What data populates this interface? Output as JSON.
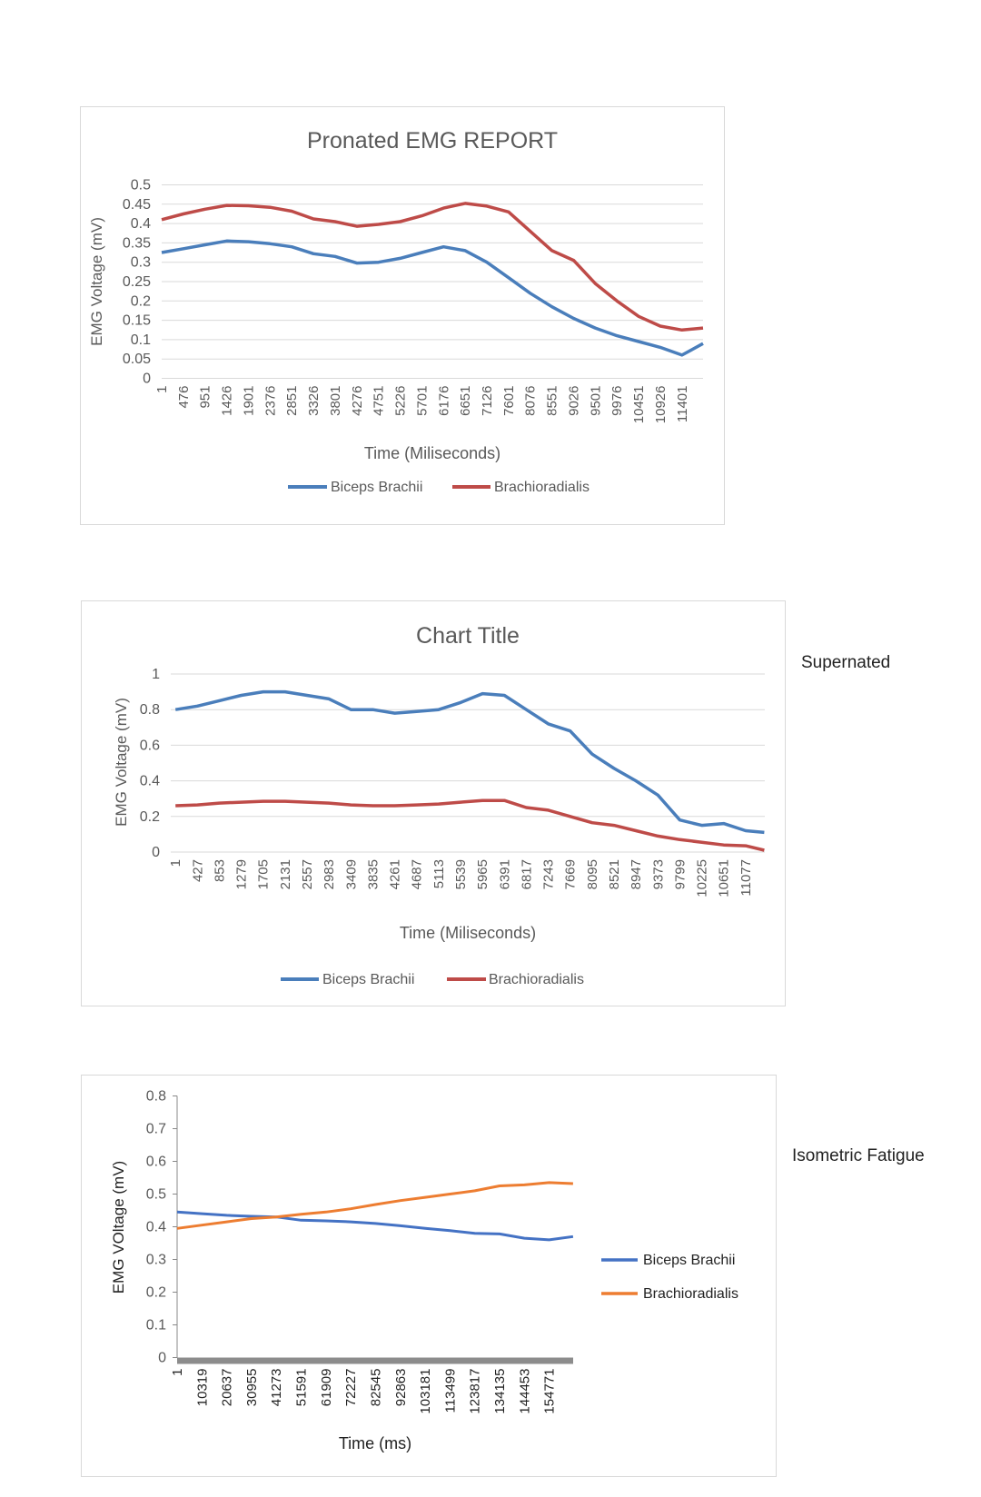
{
  "side_labels": {
    "chart2": "Supernated",
    "chart3": "Isometric Fatigue"
  },
  "chart_data": [
    {
      "type": "line",
      "title": "Pronated EMG  REPORT",
      "xlabel": "Time (Miliseconds)",
      "ylabel": "EMG Voltage (mV)",
      "ylim": [
        0,
        0.5
      ],
      "yticks": [
        "0",
        "0.05",
        "0.1",
        "0.15",
        "0.2",
        "0.25",
        "0.3",
        "0.35",
        "0.4",
        "0.45",
        "0.5"
      ],
      "xticks": [
        "1",
        "476",
        "951",
        "1426",
        "1901",
        "2376",
        "2851",
        "3326",
        "3801",
        "4276",
        "4751",
        "5226",
        "5701",
        "6176",
        "6651",
        "7126",
        "7601",
        "8076",
        "8551",
        "9026",
        "9501",
        "9976",
        "10451",
        "10926",
        "11401"
      ],
      "grid": true,
      "legend": "bottom",
      "x": [
        1,
        476,
        951,
        1426,
        1901,
        2376,
        2851,
        3326,
        3801,
        4276,
        4751,
        5226,
        5701,
        6176,
        6651,
        7126,
        7601,
        8076,
        8551,
        9026,
        9501,
        9976,
        10451,
        10926,
        11401,
        11863
      ],
      "series": [
        {
          "name": "Biceps Brachii",
          "color": "#4a7ebb",
          "values": [
            0.325,
            0.335,
            0.345,
            0.355,
            0.353,
            0.348,
            0.34,
            0.322,
            0.315,
            0.298,
            0.3,
            0.31,
            0.325,
            0.34,
            0.33,
            0.3,
            0.26,
            0.22,
            0.185,
            0.155,
            0.13,
            0.11,
            0.095,
            0.08,
            0.06,
            0.09
          ]
        },
        {
          "name": "Brachioradialis",
          "color": "#be4b48",
          "values": [
            0.41,
            0.425,
            0.437,
            0.447,
            0.446,
            0.442,
            0.432,
            0.412,
            0.405,
            0.393,
            0.398,
            0.405,
            0.42,
            0.44,
            0.452,
            0.445,
            0.43,
            0.38,
            0.33,
            0.305,
            0.245,
            0.2,
            0.16,
            0.135,
            0.125,
            0.13
          ]
        }
      ]
    },
    {
      "type": "line",
      "title": "Chart Title",
      "xlabel": "Time (Miliseconds)",
      "ylabel": "EMG Voltage (mV)",
      "ylim": [
        0,
        1
      ],
      "yticks": [
        "0",
        "0.2",
        "0.4",
        "0.6",
        "0.8",
        "1"
      ],
      "xticks": [
        "1",
        "427",
        "853",
        "1279",
        "1705",
        "2131",
        "2557",
        "2983",
        "3409",
        "3835",
        "4261",
        "4687",
        "5113",
        "5539",
        "5965",
        "6391",
        "6817",
        "7243",
        "7669",
        "8095",
        "8521",
        "8947",
        "9373",
        "9799",
        "10225",
        "10651",
        "11077"
      ],
      "grid": true,
      "legend": "bottom",
      "x": [
        1,
        427,
        853,
        1279,
        1705,
        2131,
        2557,
        2983,
        3409,
        3835,
        4261,
        4687,
        5113,
        5539,
        5965,
        6391,
        6817,
        7243,
        7669,
        8095,
        8521,
        8947,
        9373,
        9799,
        10225,
        10651,
        11077,
        11440
      ],
      "series": [
        {
          "name": "Biceps Brachii",
          "color": "#4a7ebb",
          "values": [
            0.8,
            0.82,
            0.85,
            0.88,
            0.9,
            0.9,
            0.88,
            0.86,
            0.8,
            0.8,
            0.78,
            0.79,
            0.8,
            0.84,
            0.89,
            0.88,
            0.8,
            0.72,
            0.68,
            0.55,
            0.47,
            0.4,
            0.32,
            0.18,
            0.15,
            0.16,
            0.12,
            0.11
          ]
        },
        {
          "name": "Brachioradialis",
          "color": "#be4b48",
          "values": [
            0.26,
            0.265,
            0.275,
            0.28,
            0.285,
            0.285,
            0.28,
            0.275,
            0.265,
            0.26,
            0.26,
            0.265,
            0.27,
            0.28,
            0.29,
            0.29,
            0.25,
            0.235,
            0.2,
            0.165,
            0.15,
            0.12,
            0.09,
            0.07,
            0.055,
            0.04,
            0.035,
            0.01
          ]
        }
      ]
    },
    {
      "type": "line",
      "title": "",
      "xlabel": "Time (ms)",
      "ylabel": "EMG VOltage (mV)",
      "ylim": [
        0,
        0.8
      ],
      "yticks": [
        "0",
        "0.1",
        "0.2",
        "0.3",
        "0.4",
        "0.5",
        "0.6",
        "0.7",
        "0.8"
      ],
      "xticks": [
        "1",
        "10319",
        "20637",
        "30955",
        "41273",
        "51591",
        "61909",
        "72227",
        "82545",
        "92863",
        "103181",
        "113499",
        "123817",
        "134135",
        "144453",
        "154771"
      ],
      "grid": false,
      "legend": "right",
      "x": [
        1,
        10319,
        20637,
        30955,
        41273,
        51591,
        61909,
        72227,
        82545,
        92863,
        103181,
        113499,
        123817,
        134135,
        144453,
        154771,
        164700
      ],
      "series": [
        {
          "name": "Biceps Brachii",
          "color": "#4472c4",
          "values": [
            0.445,
            0.44,
            0.435,
            0.432,
            0.43,
            0.42,
            0.418,
            0.415,
            0.41,
            0.403,
            0.395,
            0.388,
            0.38,
            0.378,
            0.365,
            0.36,
            0.37
          ]
        },
        {
          "name": "Brachioradialis",
          "color": "#ed7d31",
          "values": [
            0.395,
            0.405,
            0.415,
            0.425,
            0.43,
            0.438,
            0.445,
            0.455,
            0.468,
            0.48,
            0.49,
            0.5,
            0.51,
            0.525,
            0.528,
            0.535,
            0.532
          ]
        }
      ]
    }
  ]
}
